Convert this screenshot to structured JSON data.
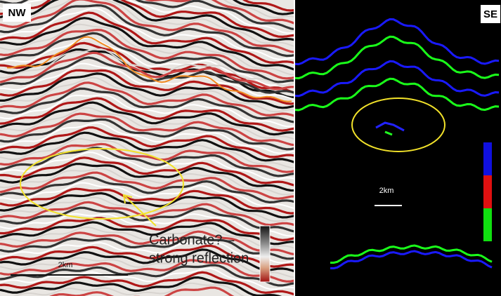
{
  "panels": {
    "left": {
      "label": "NW",
      "scale": "2km",
      "annotation": [
        "Carbonate? –",
        "strong reflection"
      ]
    },
    "right": {
      "label": "SE",
      "scale": "2km"
    }
  }
}
